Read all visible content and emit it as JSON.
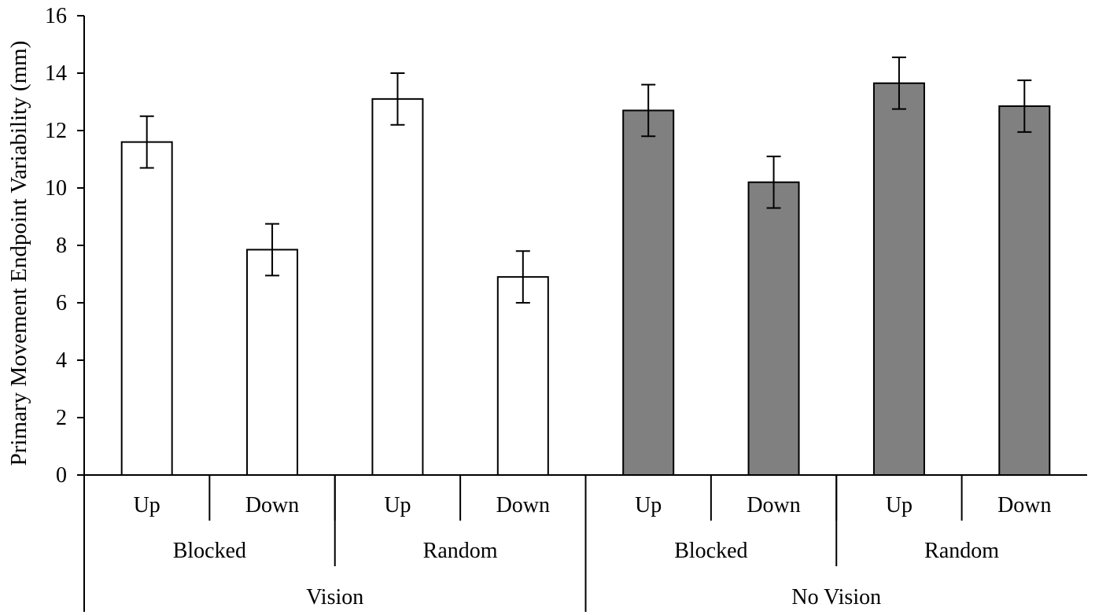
{
  "chart_data": {
    "type": "bar",
    "title": "",
    "ylabel": "Primary Movement Endpoint Variability (mm)",
    "xlabel": "",
    "ylim": [
      0,
      16
    ],
    "yticks": [
      0,
      2,
      4,
      6,
      8,
      10,
      12,
      14,
      16
    ],
    "grid": false,
    "legend": "none",
    "categories": [
      "Up",
      "Down",
      "Up",
      "Down",
      "Up",
      "Down",
      "Up",
      "Down"
    ],
    "groups": [
      {
        "label": "Blocked",
        "span": 2
      },
      {
        "label": "Random",
        "span": 2
      },
      {
        "label": "Blocked",
        "span": 2
      },
      {
        "label": "Random",
        "span": 2
      }
    ],
    "supergroups": [
      {
        "label": "Vision",
        "span": 4
      },
      {
        "label": "No Vision",
        "span": 4
      }
    ],
    "values": [
      11.6,
      7.85,
      13.1,
      6.9,
      12.7,
      10.2,
      13.65,
      12.85
    ],
    "errors": [
      0.9,
      0.9,
      0.9,
      0.9,
      0.9,
      0.9,
      0.9,
      0.9
    ],
    "bar_colors": [
      "#ffffff",
      "#ffffff",
      "#ffffff",
      "#ffffff",
      "#808080",
      "#808080",
      "#808080",
      "#808080"
    ],
    "bar_stroke": "#000000"
  }
}
